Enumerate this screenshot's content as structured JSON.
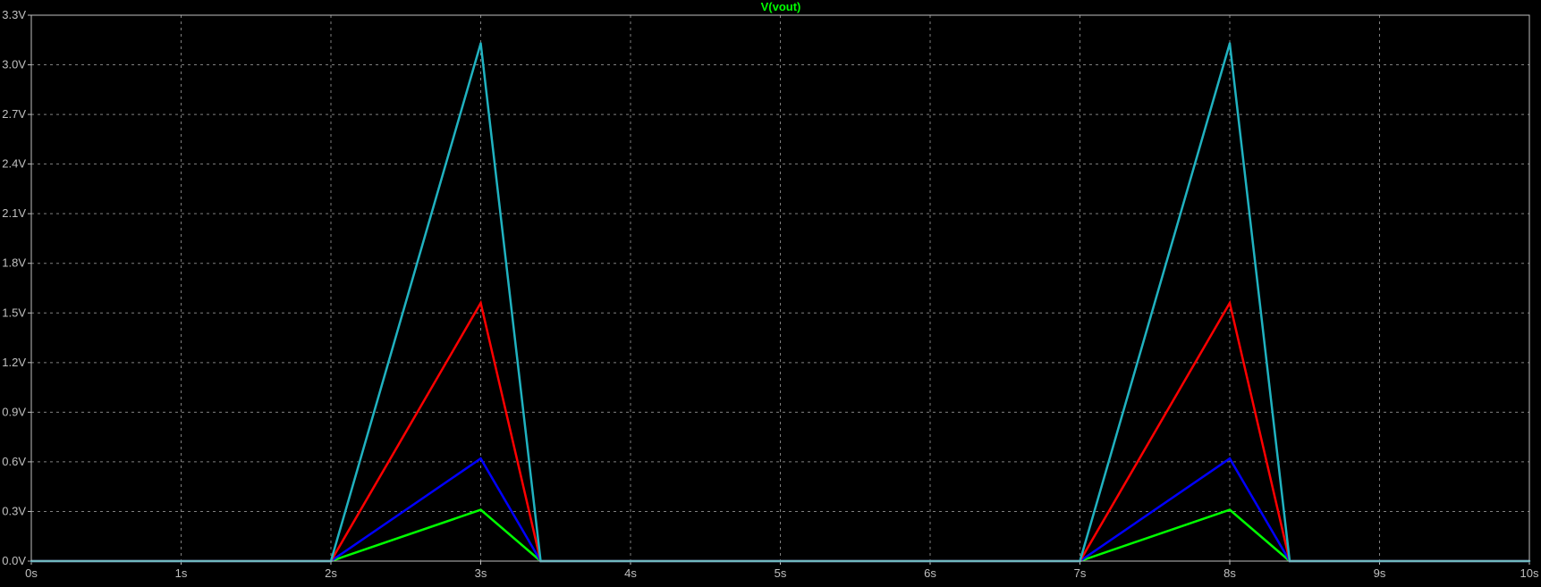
{
  "chart_data": {
    "type": "line",
    "title": "V(vout)",
    "title_color": "#00ff00",
    "xlabel": "",
    "ylabel": "",
    "xlim": [
      0,
      10
    ],
    "ylim": [
      0,
      3.3
    ],
    "grid": true,
    "grid_color": "#808080",
    "background_color": "#000000",
    "axis_color": "#c0c0c0",
    "x_ticks": [
      0,
      1,
      2,
      3,
      4,
      5,
      6,
      7,
      8,
      9,
      10
    ],
    "x_tick_labels": [
      "0s",
      "1s",
      "2s",
      "3s",
      "4s",
      "5s",
      "6s",
      "7s",
      "8s",
      "9s",
      "10s"
    ],
    "y_ticks": [
      0,
      0.3,
      0.6,
      0.9,
      1.2,
      1.5,
      1.8,
      2.1,
      2.4,
      2.7,
      3.0,
      3.3
    ],
    "y_tick_labels": [
      "0.0V",
      "0.3V",
      "0.6V",
      "0.9V",
      "1.2V",
      "1.5V",
      "1.8V",
      "2.1V",
      "2.4V",
      "2.7V",
      "3.0V",
      "3.3V"
    ],
    "x": [
      0,
      2,
      3,
      3.4,
      7,
      8,
      8.4,
      10
    ],
    "series": [
      {
        "color": "#00ff00",
        "values": [
          0,
          0,
          0.31,
          0,
          0,
          0.31,
          0,
          0
        ]
      },
      {
        "color": "#0000ff",
        "values": [
          0,
          0,
          0.62,
          0,
          0,
          0.62,
          0,
          0
        ]
      },
      {
        "color": "#ff0000",
        "values": [
          0,
          0,
          1.56,
          0,
          0,
          1.56,
          0,
          0
        ]
      },
      {
        "color": "#20b2c0",
        "values": [
          0,
          0,
          3.13,
          0,
          0,
          3.13,
          0,
          0
        ]
      }
    ]
  }
}
